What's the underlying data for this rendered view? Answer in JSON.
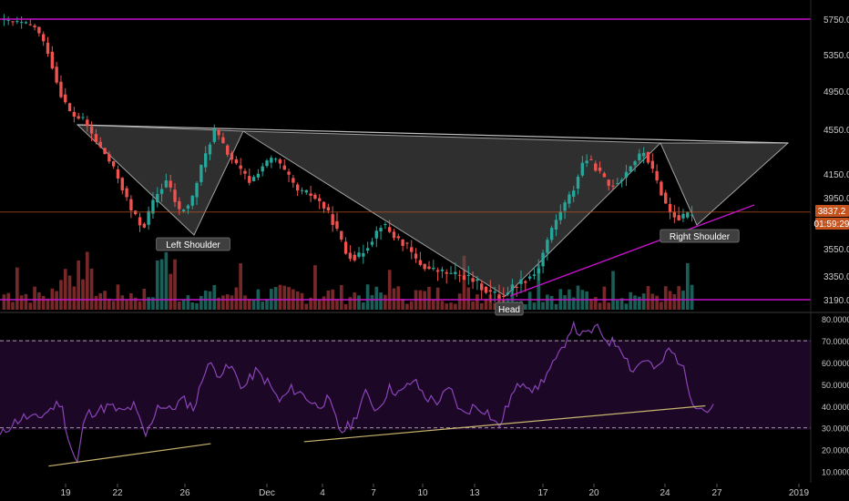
{
  "theme": {
    "background": "#000000",
    "up_color": "#26a69a",
    "down_color": "#ef5350",
    "level_line_color": "#c213c8",
    "pattern_fill": "#555555",
    "rsi_band_fill": "#1c0826",
    "rsi_line_color": "#8b44b8",
    "trendline_color": "#c8b46e",
    "axis_text_color": "#c8c8c8",
    "price_label_color": "#c4531e"
  },
  "chart_data": [
    {
      "type": "candlestick",
      "x_axis": {
        "tick_labels": [
          "19",
          "22",
          "26",
          "Dec",
          "4",
          "7",
          "10",
          "13",
          "17",
          "20",
          "24",
          "27",
          "2019"
        ]
      },
      "y_axis": {
        "tick_labels": [
          "5750.0",
          "5350.0",
          "4950.0",
          "4550.0",
          "4150.0",
          "3950.0",
          "3550.0",
          "3350.0",
          "3190.0"
        ],
        "range": [
          3130,
          5850
        ]
      },
      "current_price": "3837.2",
      "countdown": "01:59:29",
      "horizontal_levels": [
        5750,
        3190
      ],
      "support_line": 3837.2,
      "pattern": {
        "name": "Inverse Head and Shoulders",
        "labels": [
          "Left Shoulder",
          "Head",
          "Right Shoulder"
        ],
        "left_shoulder_low": 3710,
        "head_low": 3210,
        "right_shoulder_low": 3760,
        "neckline": [
          4600,
          4480
        ]
      },
      "price_path": [
        5740,
        5720,
        5700,
        5660,
        5400,
        4950,
        4700,
        4650,
        4450,
        4300,
        4100,
        3850,
        3710,
        3950,
        4100,
        3840,
        3900,
        4250,
        4550,
        4350,
        4200,
        4080,
        4220,
        4300,
        4150,
        4000,
        3980,
        3900,
        3750,
        3520,
        3480,
        3600,
        3750,
        3650,
        3580,
        3450,
        3400,
        3380,
        3360,
        3350,
        3300,
        3240,
        3210,
        3280,
        3330,
        3380,
        3650,
        3850,
        4000,
        4300,
        4200,
        4050,
        4100,
        4250,
        4350,
        4100,
        3850,
        3780,
        3837
      ]
    },
    {
      "type": "line",
      "name": "RSI",
      "y_axis": {
        "tick_labels": [
          "80.0000",
          "70.0000",
          "60.0000",
          "50.0000",
          "40.0000",
          "30.0000",
          "20.0000",
          "10.0000"
        ],
        "range": [
          8.5,
          80.5
        ]
      },
      "overbought": 70,
      "oversold": 30,
      "x": [
        0,
        0.015,
        0.03,
        0.045,
        0.06,
        0.075,
        0.085,
        0.095,
        0.105,
        0.12,
        0.135,
        0.15,
        0.165,
        0.18,
        0.195,
        0.21,
        0.225,
        0.24,
        0.255,
        0.27,
        0.285,
        0.3,
        0.315,
        0.33,
        0.345,
        0.36,
        0.375,
        0.39,
        0.405,
        0.42,
        0.435,
        0.45,
        0.465,
        0.48,
        0.495,
        0.51,
        0.525,
        0.54,
        0.555,
        0.57,
        0.585,
        0.6,
        0.615,
        0.63,
        0.645,
        0.66,
        0.675,
        0.69,
        0.705,
        0.72,
        0.735,
        0.75,
        0.765,
        0.78,
        0.795,
        0.81,
        0.825,
        0.84,
        0.855,
        0.87,
        0.88
      ],
      "values": [
        26,
        32,
        35,
        34,
        38,
        42,
        24,
        13,
        36,
        38,
        40,
        37,
        40,
        26,
        41,
        38,
        43,
        39,
        60,
        55,
        58,
        48,
        56,
        51,
        42,
        48,
        45,
        40,
        43,
        28,
        32,
        46,
        38,
        48,
        46,
        52,
        44,
        42,
        48,
        36,
        40,
        38,
        30,
        44,
        52,
        47,
        55,
        63,
        77,
        72,
        76,
        70,
        68,
        56,
        62,
        56,
        66,
        60,
        42,
        38,
        39
      ],
      "trendlines": [
        {
          "from": [
            0.06,
            12.4
          ],
          "to": [
            0.26,
            22.7
          ]
        },
        {
          "from": [
            0.375,
            23.6
          ],
          "to": [
            0.87,
            40.1
          ]
        }
      ]
    }
  ]
}
